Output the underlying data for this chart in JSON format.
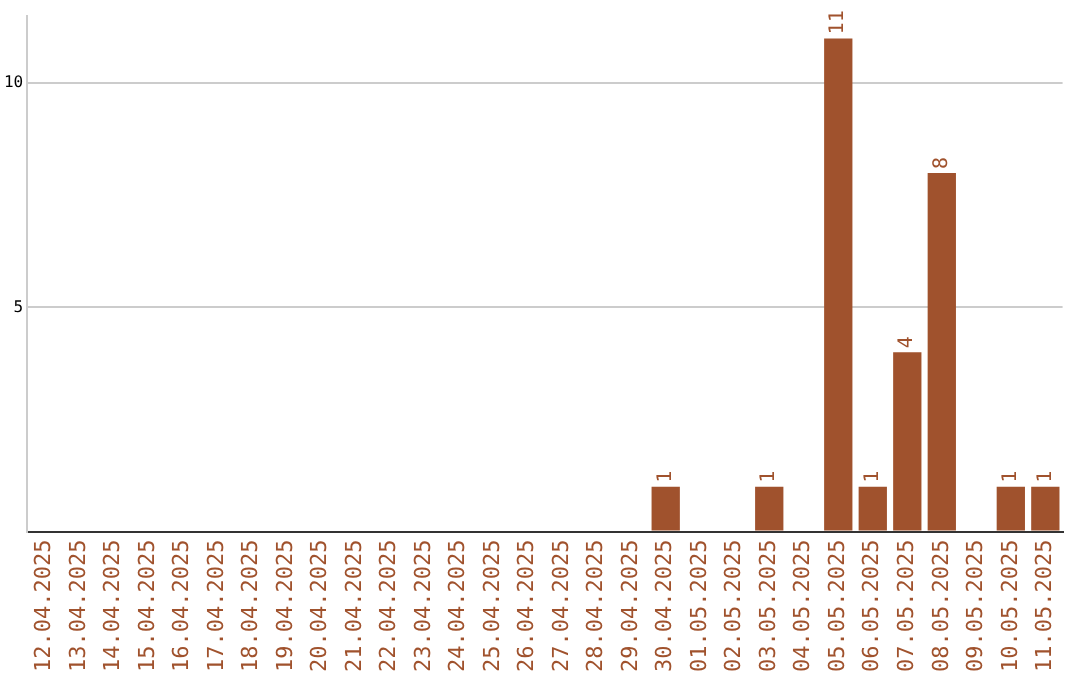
{
  "chart_data": {
    "type": "bar",
    "categories": [
      "12.04.2025",
      "13.04.2025",
      "14.04.2025",
      "15.04.2025",
      "16.04.2025",
      "17.04.2025",
      "18.04.2025",
      "19.04.2025",
      "20.04.2025",
      "21.04.2025",
      "22.04.2025",
      "23.04.2025",
      "24.04.2025",
      "25.04.2025",
      "26.04.2025",
      "27.04.2025",
      "28.04.2025",
      "29.04.2025",
      "30.04.2025",
      "01.05.2025",
      "02.05.2025",
      "03.05.2025",
      "04.05.2025",
      "05.05.2025",
      "06.05.2025",
      "07.05.2025",
      "08.05.2025",
      "09.05.2025",
      "10.05.2025",
      "11.05.2025"
    ],
    "values": [
      0,
      0,
      0,
      0,
      0,
      0,
      0,
      0,
      0,
      0,
      0,
      0,
      0,
      0,
      0,
      0,
      0,
      0,
      1,
      0,
      0,
      1,
      0,
      11,
      1,
      4,
      8,
      0,
      1,
      1
    ],
    "value_labels": [
      null,
      null,
      null,
      null,
      null,
      null,
      null,
      null,
      null,
      null,
      null,
      null,
      null,
      null,
      null,
      null,
      null,
      null,
      "1",
      null,
      null,
      "1",
      null,
      "11",
      "1",
      "4",
      "8",
      null,
      "1",
      "1"
    ],
    "color": "#a0522d",
    "ylim": [
      0,
      11.5
    ],
    "yticks": [
      {
        "value": 0,
        "label": null
      },
      5,
      10
    ],
    "grid": "y",
    "legend": false
  }
}
